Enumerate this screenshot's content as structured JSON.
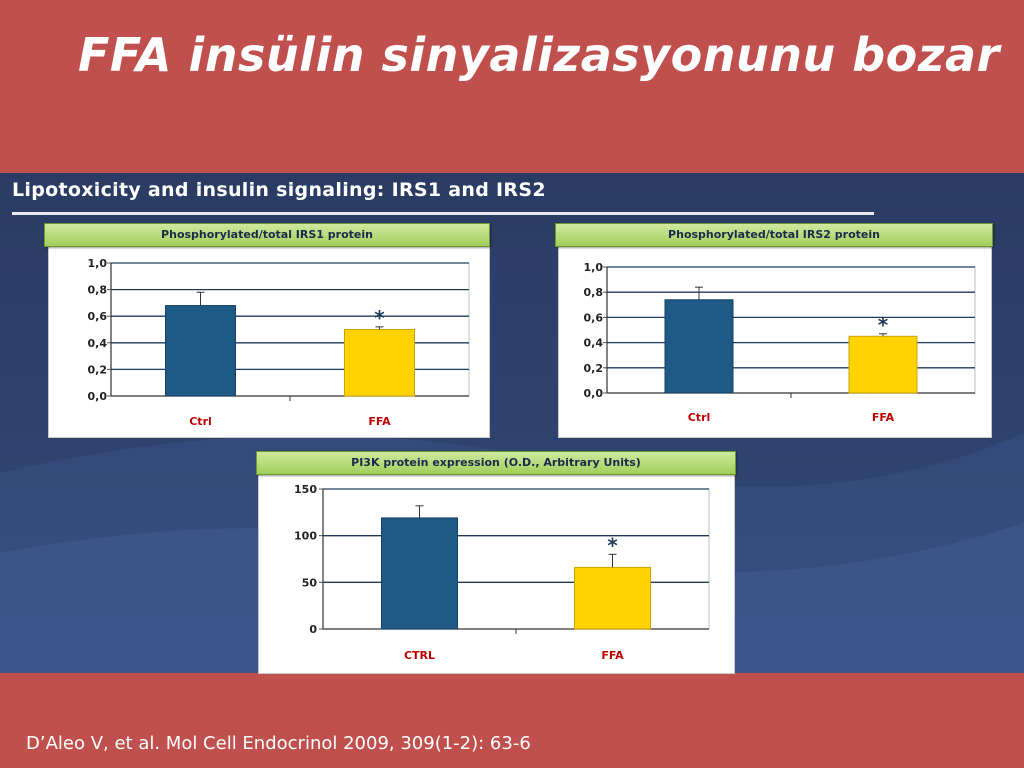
{
  "slide": {
    "title": "FFA insülin sinyalizasyonunu bozar",
    "panel_title": "Lipotoxicity and insulin signaling: IRS1 and IRS2",
    "citation": "D’Aleo V, et al. Mol Cell Endocrinol 2009, 309(1-2): 63-6"
  },
  "colors": {
    "background": "#c0504d",
    "panel": "#2b3e66",
    "ctrl_bar": "#1f5a86",
    "ffa_bar": "#ffd200",
    "header_green": "#9fcf5a"
  },
  "chart_data": [
    {
      "type": "bar",
      "title": "Phosphorylated/total IRS1 protein",
      "categories": [
        "Ctrl",
        "FFA"
      ],
      "values": [
        0.68,
        0.5
      ],
      "errors": [
        0.1,
        0.02
      ],
      "significance": [
        "",
        "*"
      ],
      "yticks": [
        "1,0",
        "0,8",
        "0,6",
        "0,4",
        "0,2",
        "0,0"
      ],
      "ytick_values": [
        1.0,
        0.8,
        0.6,
        0.4,
        0.2,
        0.0
      ],
      "ylim": [
        0,
        1.0
      ],
      "grid": true
    },
    {
      "type": "bar",
      "title": "Phosphorylated/total IRS2 protein",
      "categories": [
        "Ctrl",
        "FFA"
      ],
      "values": [
        0.74,
        0.45
      ],
      "errors": [
        0.1,
        0.02
      ],
      "significance": [
        "",
        "*"
      ],
      "yticks": [
        "1,0",
        "0,8",
        "0,6",
        "0,4",
        "0,2",
        "0,0"
      ],
      "ytick_values": [
        1.0,
        0.8,
        0.6,
        0.4,
        0.2,
        0.0
      ],
      "ylim": [
        0,
        1.0
      ],
      "grid": true
    },
    {
      "type": "bar",
      "title": "PI3K protein expression (O.D., Arbitrary Units)",
      "categories": [
        "CTRL",
        "FFA"
      ],
      "values": [
        119,
        66
      ],
      "errors": [
        13,
        14
      ],
      "significance": [
        "",
        "*"
      ],
      "yticks": [
        "150",
        "100",
        "50",
        "0"
      ],
      "ytick_values": [
        150,
        100,
        50,
        0
      ],
      "ylim": [
        0,
        150
      ],
      "grid": true
    }
  ]
}
